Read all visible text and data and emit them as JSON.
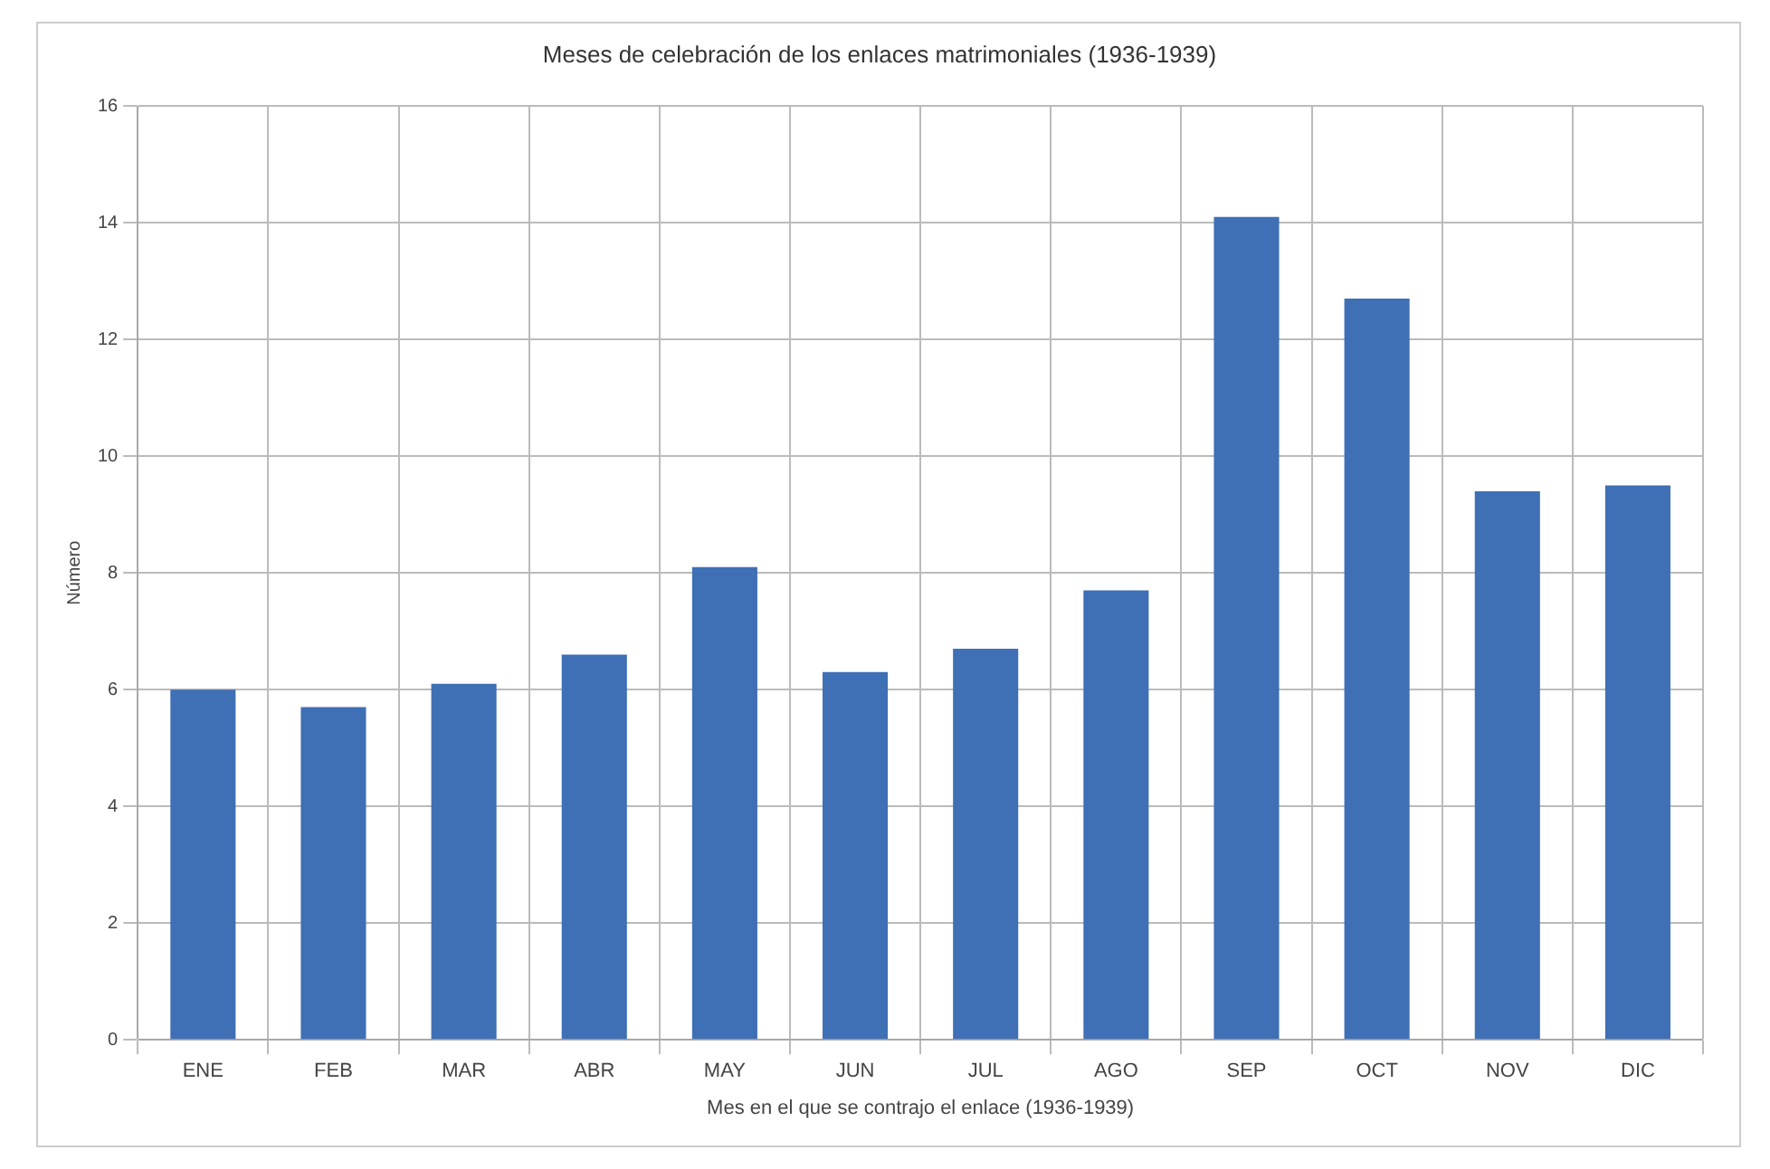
{
  "chart_data": {
    "type": "bar",
    "title": "Meses de celebración de los enlaces matrimoniales (1936-1939)",
    "xlabel": "Mes en el que se contrajo el enlace (1936-1939)",
    "ylabel": "Número",
    "categories": [
      "ENE",
      "FEB",
      "MAR",
      "ABR",
      "MAY",
      "JUN",
      "JUL",
      "AGO",
      "SEP",
      "OCT",
      "NOV",
      "DIC"
    ],
    "values": [
      6.0,
      5.7,
      6.1,
      6.6,
      8.1,
      6.3,
      6.7,
      7.7,
      14.1,
      12.7,
      9.4,
      9.5
    ],
    "color": "#3f6fb5",
    "ylim": [
      0,
      16
    ],
    "yticks": [
      0,
      2,
      4,
      6,
      8,
      10,
      12,
      14,
      16
    ],
    "grid": true
  }
}
